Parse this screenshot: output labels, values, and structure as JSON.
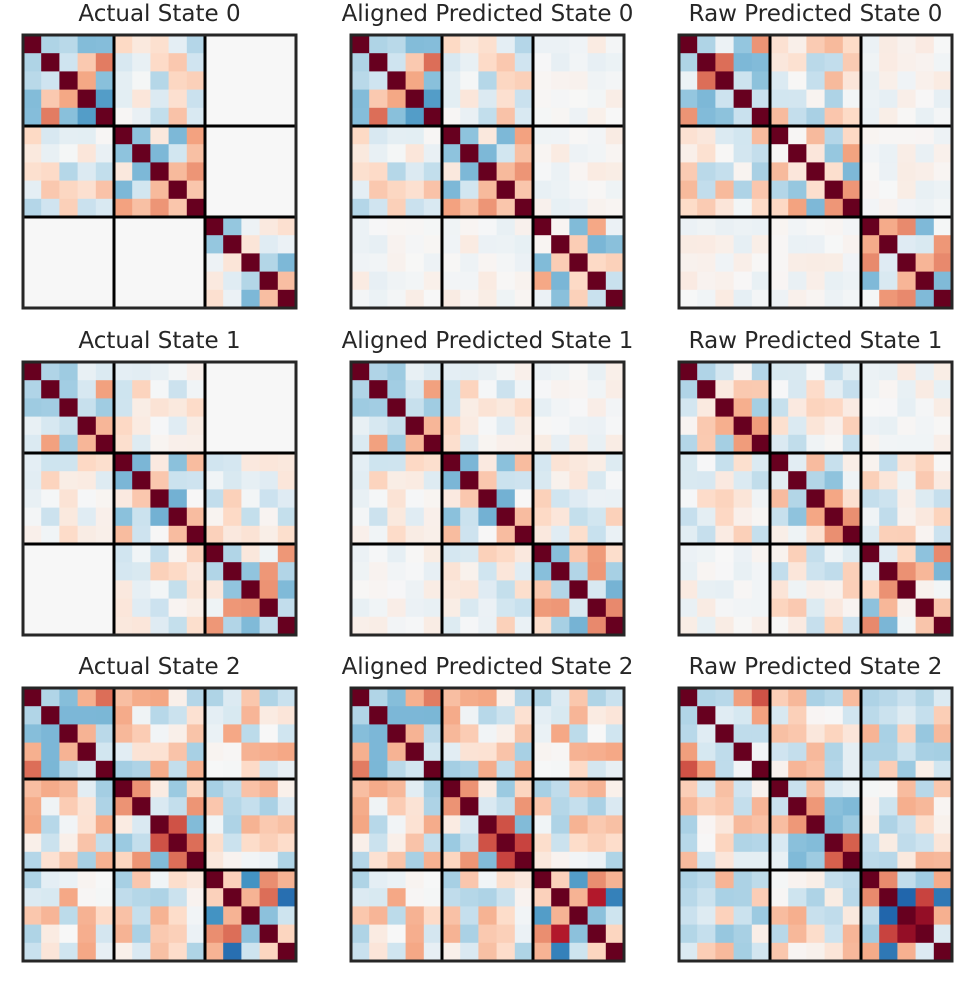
{
  "figure": {
    "blocks": [
      5,
      5,
      5
    ],
    "colormap": "RdBu_r",
    "value_range": [
      -1,
      1
    ]
  },
  "chart_data": [
    {
      "type": "heatmap",
      "title": "Actual State 0",
      "row": 0,
      "col": 0,
      "seed": 11,
      "active_blocks": [
        0,
        1,
        2
      ],
      "cross_blocks": [
        [
          0,
          1
        ],
        [
          1,
          0
        ]
      ],
      "off_scale": 0.18,
      "empty_offdiag": true,
      "special": [
        [
          0,
          4,
          3,
          -0.45
        ],
        [
          0,
          4,
          1,
          0.4
        ],
        [
          0,
          4,
          4,
          0.35
        ]
      ]
    },
    {
      "type": "heatmap",
      "title": "Aligned Predicted State 0",
      "row": 0,
      "col": 1,
      "seed": 11,
      "active_blocks": [
        0,
        1,
        2
      ],
      "cross_blocks": [
        [
          0,
          1
        ],
        [
          1,
          0
        ]
      ],
      "off_scale": 0.18,
      "empty_offdiag": false,
      "special": [
        [
          0,
          3,
          4,
          -0.45
        ],
        [
          0,
          4,
          1,
          0.45
        ],
        [
          1,
          2,
          2,
          -0.4
        ]
      ]
    },
    {
      "type": "heatmap",
      "title": "Raw Predicted State 0",
      "row": 0,
      "col": 2,
      "seed": 13,
      "active_blocks": [
        0,
        1,
        2
      ],
      "cross_blocks": [
        [
          0,
          1
        ],
        [
          1,
          0
        ]
      ],
      "off_scale": 0.2,
      "empty_offdiag": false,
      "special": [
        [
          0,
          2,
          1,
          0.45
        ],
        [
          0,
          1,
          4,
          -0.3
        ],
        [
          2,
          4,
          2,
          0.35
        ]
      ]
    },
    {
      "type": "heatmap",
      "title": "Actual State 1",
      "row": 1,
      "col": 0,
      "seed": 21,
      "active_blocks": [
        0,
        1,
        2
      ],
      "cross_blocks": [
        [
          0,
          1
        ],
        [
          1,
          0
        ],
        [
          2,
          1
        ],
        [
          1,
          2
        ]
      ],
      "off_scale": 0.14,
      "empty_offdiag": true,
      "special": [
        [
          2,
          1,
          3,
          0.3
        ],
        [
          2,
          4,
          0,
          0.3
        ]
      ]
    },
    {
      "type": "heatmap",
      "title": "Aligned Predicted State 1",
      "row": 1,
      "col": 1,
      "seed": 21,
      "active_blocks": [
        0,
        1,
        2
      ],
      "cross_blocks": [
        [
          0,
          1
        ],
        [
          1,
          0
        ],
        [
          2,
          1
        ],
        [
          1,
          2
        ]
      ],
      "off_scale": 0.14,
      "empty_offdiag": false,
      "special": [
        [
          2,
          1,
          3,
          0.3
        ],
        [
          2,
          4,
          3,
          0.35
        ]
      ]
    },
    {
      "type": "heatmap",
      "title": "Raw Predicted State 1",
      "row": 1,
      "col": 2,
      "seed": 23,
      "active_blocks": [
        0,
        1,
        2
      ],
      "cross_blocks": [
        [
          0,
          1
        ],
        [
          1,
          0
        ],
        [
          2,
          1
        ],
        [
          1,
          2
        ]
      ],
      "off_scale": 0.15,
      "empty_offdiag": false,
      "special": [
        [
          2,
          4,
          0,
          0.35
        ],
        [
          2,
          1,
          3,
          0.2
        ]
      ]
    },
    {
      "type": "heatmap",
      "title": "Actual State 2",
      "row": 2,
      "col": 0,
      "seed": 31,
      "active_blocks": [
        0,
        1,
        2
      ],
      "cross_blocks": [
        [
          0,
          1
        ],
        [
          1,
          0
        ],
        [
          0,
          2
        ],
        [
          2,
          0
        ],
        [
          1,
          2
        ],
        [
          2,
          1
        ]
      ],
      "off_scale": 0.25,
      "empty_offdiag": false,
      "special": [
        [
          2,
          4,
          1,
          0.9
        ],
        [
          2,
          3,
          1,
          0.45
        ],
        [
          2,
          1,
          4,
          -0.7
        ],
        [
          2,
          2,
          0,
          -0.5
        ],
        [
          1,
          3,
          2,
          0.55
        ],
        [
          1,
          4,
          3,
          0.45
        ],
        [
          0,
          4,
          0,
          0.45
        ]
      ]
    },
    {
      "type": "heatmap",
      "title": "Aligned Predicted State 2",
      "row": 2,
      "col": 1,
      "seed": 31,
      "active_blocks": [
        0,
        1,
        2
      ],
      "cross_blocks": [
        [
          0,
          1
        ],
        [
          1,
          0
        ],
        [
          0,
          2
        ],
        [
          2,
          0
        ],
        [
          1,
          2
        ],
        [
          2,
          1
        ]
      ],
      "off_scale": 0.25,
      "empty_offdiag": false,
      "special": [
        [
          2,
          4,
          1,
          0.85
        ],
        [
          2,
          3,
          1,
          0.75
        ],
        [
          2,
          1,
          4,
          -0.6
        ],
        [
          2,
          2,
          0,
          -0.45
        ],
        [
          1,
          3,
          2,
          0.55
        ],
        [
          1,
          4,
          3,
          0.6
        ],
        [
          0,
          4,
          0,
          0.4
        ]
      ]
    },
    {
      "type": "heatmap",
      "title": "Raw Predicted State 2",
      "row": 2,
      "col": 2,
      "seed": 33,
      "active_blocks": [
        0,
        1,
        2
      ],
      "cross_blocks": [
        [
          0,
          1
        ],
        [
          1,
          0
        ],
        [
          0,
          2
        ],
        [
          2,
          0
        ],
        [
          1,
          2
        ],
        [
          2,
          1
        ]
      ],
      "off_scale": 0.25,
      "empty_offdiag": false,
      "special": [
        [
          2,
          3,
          1,
          0.6
        ],
        [
          2,
          3,
          2,
          0.85
        ],
        [
          2,
          2,
          1,
          -0.75
        ],
        [
          2,
          1,
          4,
          -0.65
        ],
        [
          1,
          4,
          3,
          0.5
        ],
        [
          0,
          4,
          0,
          0.55
        ]
      ]
    }
  ]
}
